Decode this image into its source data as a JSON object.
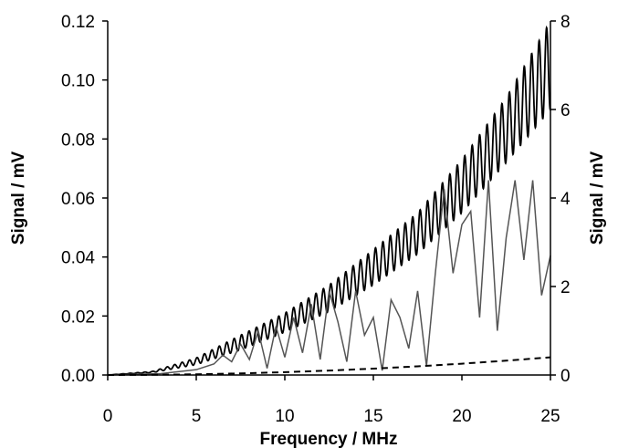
{
  "chart_data": {
    "type": "line",
    "xlabel": "Frequency / MHz",
    "ylabel_left": "Signal / mV",
    "ylabel_right": "Signal / mV",
    "xlim": [
      0,
      25
    ],
    "ylim_left": [
      0,
      0.12
    ],
    "ylim_right": [
      0,
      8
    ],
    "x_ticks": [
      "0",
      "5",
      "10",
      "15",
      "20",
      "25"
    ],
    "y_left_ticks": [
      "0.00",
      "0.02",
      "0.04",
      "0.06",
      "0.08",
      "0.10",
      "0.12"
    ],
    "y_right_ticks": [
      "0",
      "2",
      "4",
      "6",
      "8"
    ],
    "grid": false,
    "legend": "none",
    "series": [
      {
        "axis": "left",
        "style": "solid-black-oscillating",
        "color": "#000000",
        "x": [
          0,
          2.5,
          5,
          7.5,
          10,
          12.5,
          15,
          17.5,
          20,
          22.5,
          25
        ],
        "upper_envelope": [
          0,
          0.0012,
          0.0058,
          0.0135,
          0.021,
          0.0305,
          0.0425,
          0.055,
          0.073,
          0.094,
          0.12
        ],
        "lower_envelope": [
          0,
          0.0008,
          0.0035,
          0.0085,
          0.0145,
          0.0215,
          0.0305,
          0.041,
          0.055,
          0.072,
          0.09
        ],
        "oscillation_period_mhz": 0.42
      },
      {
        "axis": "right",
        "style": "solid-gray-noisy",
        "color": "#555555",
        "x": [
          0,
          3,
          5,
          6,
          6.5,
          7,
          7.5,
          8,
          8.5,
          9,
          9.5,
          10,
          10.5,
          11,
          11.5,
          12,
          12.5,
          13,
          13.5,
          14,
          14.5,
          15,
          15.5,
          16,
          16.5,
          17,
          17.5,
          18,
          18.5,
          19,
          19.5,
          20,
          20.5,
          21,
          21.5,
          22,
          22.5,
          23,
          23.5,
          24,
          24.5,
          25
        ],
        "values": [
          0,
          0.03,
          0.12,
          0.25,
          0.45,
          0.3,
          0.7,
          0.35,
          1.0,
          0.15,
          1.1,
          0.4,
          1.3,
          0.5,
          1.6,
          0.35,
          1.9,
          1.2,
          0.3,
          1.9,
          0.9,
          1.3,
          0.1,
          1.7,
          1.3,
          0.6,
          1.9,
          0.2,
          2.3,
          4.2,
          2.3,
          3.4,
          3.7,
          1.3,
          4.4,
          1.0,
          3.1,
          4.4,
          2.6,
          4.4,
          1.8,
          2.7
        ]
      },
      {
        "axis": "right",
        "style": "dashed-black",
        "color": "#000000",
        "x": [
          0,
          2.5,
          5,
          7.5,
          10,
          12.5,
          15,
          17.5,
          20,
          22.5,
          25
        ],
        "values": [
          0,
          0.004,
          0.016,
          0.036,
          0.064,
          0.1,
          0.144,
          0.196,
          0.256,
          0.324,
          0.4
        ]
      }
    ]
  }
}
